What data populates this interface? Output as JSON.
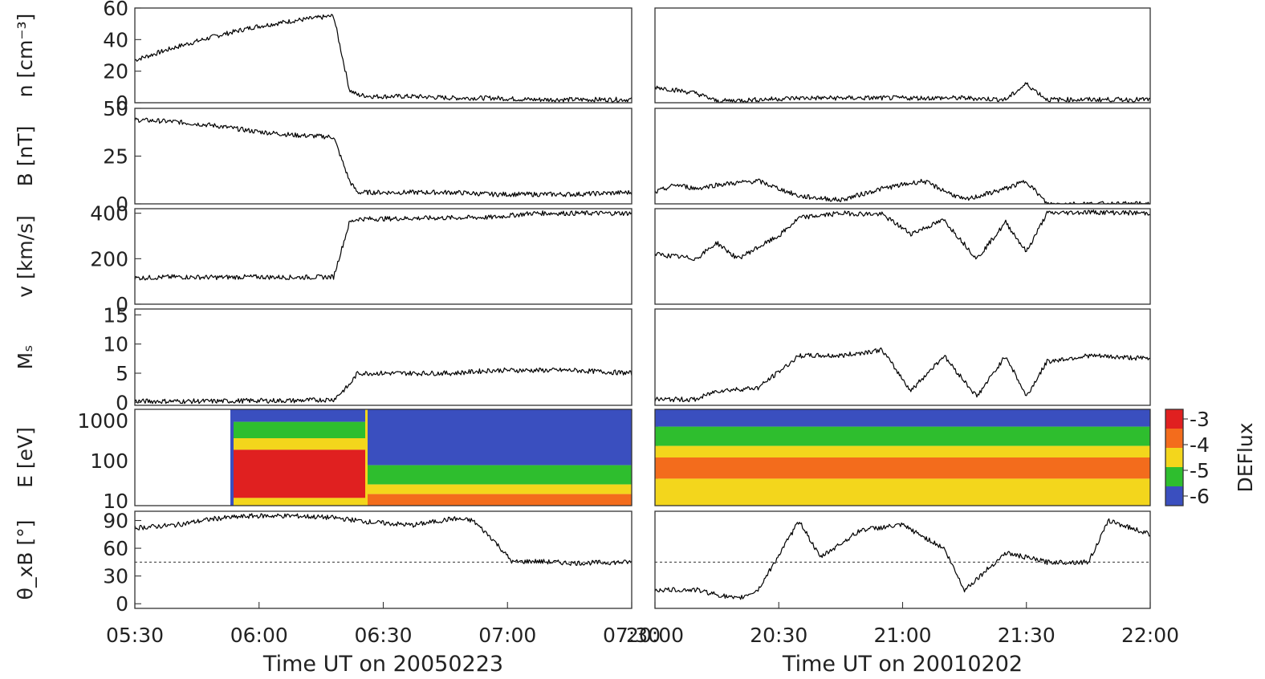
{
  "chart_data": [
    {
      "type": "line",
      "panel": "left",
      "xlabel": "Time UT on 20050223",
      "x_ticks": [
        "05:30",
        "06:00",
        "06:30",
        "07:00",
        "07:30"
      ],
      "x_range_min": [
        0,
        125
      ],
      "rows": [
        {
          "ylabel": "n [cm⁻³]",
          "yticks": [
            "0",
            "20",
            "40",
            "60"
          ],
          "ylim": [
            0,
            60
          ],
          "series": [
            {
              "t": [
                0,
                10,
                20,
                30,
                40,
                50,
                54,
                56,
                60,
                70,
                80,
                90,
                100,
                110,
                125
              ],
              "v": [
                27,
                35,
                42,
                48,
                52,
                55,
                8,
                5,
                4,
                4,
                3,
                3,
                2,
                2,
                2
              ]
            }
          ]
        },
        {
          "ylabel": "B [nT]",
          "yticks": [
            "0",
            "25",
            "50"
          ],
          "ylim": [
            0,
            50
          ],
          "series": [
            {
              "t": [
                0,
                10,
                20,
                30,
                40,
                50,
                54,
                56,
                60,
                70,
                80,
                90,
                100,
                110,
                125
              ],
              "v": [
                44,
                43,
                41,
                38,
                36,
                35,
                12,
                6,
                6,
                6,
                6,
                5,
                5,
                5,
                6
              ]
            }
          ]
        },
        {
          "ylabel": "v [km/s]",
          "yticks": [
            "0",
            "200",
            "400"
          ],
          "ylim": [
            0,
            420
          ],
          "series": [
            {
              "t": [
                0,
                10,
                20,
                30,
                40,
                50,
                54,
                56,
                60,
                70,
                80,
                90,
                100,
                110,
                125
              ],
              "v": [
                115,
                120,
                118,
                120,
                118,
                120,
                360,
                375,
                375,
                378,
                380,
                382,
                400,
                400,
                400
              ]
            }
          ]
        },
        {
          "ylabel": "Mₛ",
          "yticks": [
            "0",
            "5",
            "10",
            "15"
          ],
          "ylim": [
            -0.5,
            16
          ],
          "series": [
            {
              "t": [
                0,
                10,
                20,
                30,
                40,
                50,
                54,
                56,
                60,
                70,
                80,
                90,
                100,
                110,
                125
              ],
              "v": [
                0.2,
                0.2,
                0.2,
                0.3,
                0.3,
                0.5,
                3,
                5,
                5,
                5,
                5,
                5.5,
                5.5,
                5.5,
                5
              ]
            }
          ]
        },
        {
          "ylabel": "E [eV]",
          "yticks": [
            "10",
            "100",
            "1000"
          ],
          "ylim": [
            10,
            1000
          ],
          "spectrogram": "DEFlux"
        },
        {
          "ylabel": "θ_xB [°]",
          "yticks": [
            "0",
            "30",
            "60",
            "90"
          ],
          "ylim": [
            -5,
            100
          ],
          "reference_line": 45,
          "series": [
            {
              "t": [
                0,
                10,
                20,
                30,
                40,
                50,
                60,
                70,
                80,
                85,
                90,
                95,
                100,
                110,
                125
              ],
              "v": [
                82,
                85,
                92,
                95,
                95,
                93,
                88,
                85,
                92,
                90,
                70,
                45,
                46,
                44,
                45
              ]
            }
          ]
        }
      ]
    },
    {
      "type": "line",
      "panel": "right",
      "xlabel": "Time UT on 20010202",
      "x_ticks": [
        "20:00",
        "20:30",
        "21:00",
        "21:30",
        "22:00"
      ],
      "x_range_min": [
        0,
        120
      ],
      "rows": [
        {
          "ylabel": "n [cm⁻³]",
          "ylim": [
            0,
            60
          ],
          "series": [
            {
              "t": [
                0,
                5,
                10,
                15,
                25,
                35,
                45,
                55,
                65,
                75,
                85,
                90,
                95,
                105,
                120
              ],
              "v": [
                10,
                8,
                6,
                1,
                2,
                3,
                3,
                3,
                3,
                3,
                2,
                12,
                2,
                2,
                2
              ]
            }
          ]
        },
        {
          "ylabel": "B [nT]",
          "ylim": [
            0,
            50
          ],
          "series": [
            {
              "t": [
                0,
                5,
                10,
                15,
                25,
                35,
                45,
                55,
                65,
                75,
                85,
                90,
                95,
                105,
                120
              ],
              "v": [
                6,
                10,
                8,
                10,
                12,
                4,
                2,
                8,
                12,
                2,
                8,
                12,
                0,
                0,
                0
              ]
            }
          ]
        },
        {
          "ylabel": "v [km/s]",
          "ylim": [
            0,
            420
          ],
          "series": [
            {
              "t": [
                0,
                5,
                10,
                15,
                20,
                30,
                35,
                45,
                55,
                62,
                70,
                78,
                85,
                90,
                95,
                105,
                120
              ],
              "v": [
                220,
                210,
                200,
                270,
                200,
                300,
                380,
                400,
                395,
                310,
                370,
                200,
                360,
                230,
                400,
                405,
                400
              ]
            }
          ]
        },
        {
          "ylabel": "Mₛ",
          "ylim": [
            -0.5,
            16
          ],
          "series": [
            {
              "t": [
                0,
                5,
                10,
                15,
                25,
                35,
                45,
                55,
                62,
                70,
                78,
                85,
                90,
                95,
                105,
                120
              ],
              "v": [
                0.5,
                0.5,
                0.5,
                2,
                2.5,
                8,
                8,
                9,
                2,
                8,
                1,
                8,
                1,
                7,
                8,
                7.5
              ]
            }
          ]
        },
        {
          "ylabel": "E [eV]",
          "ylim": [
            10,
            1000
          ],
          "spectrogram": "DEFlux"
        },
        {
          "ylabel": "θ_xB [°]",
          "ylim": [
            -5,
            100
          ],
          "reference_line": 45,
          "series": [
            {
              "t": [
                0,
                10,
                20,
                25,
                35,
                40,
                50,
                60,
                70,
                75,
                85,
                95,
                105,
                110,
                120
              ],
              "v": [
                15,
                15,
                5,
                15,
                90,
                50,
                80,
                85,
                60,
                15,
                55,
                45,
                45,
                90,
                75
              ]
            }
          ]
        }
      ]
    }
  ],
  "colorbar": {
    "label": "DEFlux",
    "ticks": [
      "-3",
      "-4",
      "-5",
      "-6"
    ],
    "colors": [
      "#e02020",
      "#f36c1c",
      "#f3d61c",
      "#2ebe2e",
      "#3a4fbf"
    ]
  }
}
